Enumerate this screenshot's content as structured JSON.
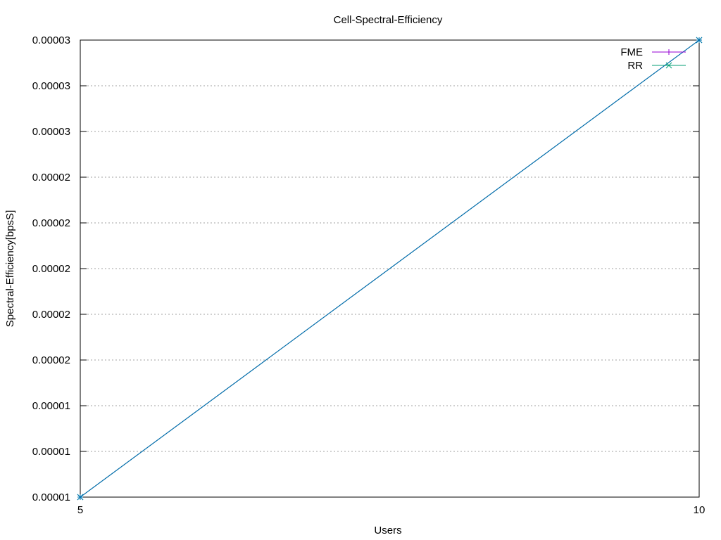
{
  "chart_data": {
    "type": "line",
    "title": "Cell-Spectral-Efficiency",
    "xlabel": "Users",
    "ylabel": "Spectral-Efficiency[bpsS]",
    "xlim": [
      5,
      10
    ],
    "ylim": [
      1e-05,
      3e-05
    ],
    "x_ticks": [
      {
        "value": 5,
        "label": "5"
      },
      {
        "value": 10,
        "label": "10"
      }
    ],
    "y_ticks": [
      {
        "value": 1e-05,
        "label": "0.00001"
      },
      {
        "value": 1.2e-05,
        "label": "0.00001"
      },
      {
        "value": 1.4e-05,
        "label": "0.00001"
      },
      {
        "value": 1.6e-05,
        "label": "0.00002"
      },
      {
        "value": 1.8e-05,
        "label": "0.00002"
      },
      {
        "value": 2e-05,
        "label": "0.00002"
      },
      {
        "value": 2.2e-05,
        "label": "0.00002"
      },
      {
        "value": 2.4e-05,
        "label": "0.00002"
      },
      {
        "value": 2.6e-05,
        "label": "0.00003"
      },
      {
        "value": 2.8e-05,
        "label": "0.00003"
      },
      {
        "value": 3e-05,
        "label": "0.00003"
      }
    ],
    "grid": {
      "y": true,
      "x": false
    },
    "legend_position": "top-right",
    "series": [
      {
        "name": "FME",
        "color": "#9400d3",
        "marker": "plus",
        "x": [
          5,
          10
        ],
        "y": [
          1e-05,
          3e-05
        ]
      },
      {
        "name": "RR",
        "color": "#009e73",
        "marker": "cross",
        "x": [
          5,
          10
        ],
        "y": [
          1e-05,
          3e-05
        ]
      }
    ],
    "overlay_color": "#0072b2"
  }
}
